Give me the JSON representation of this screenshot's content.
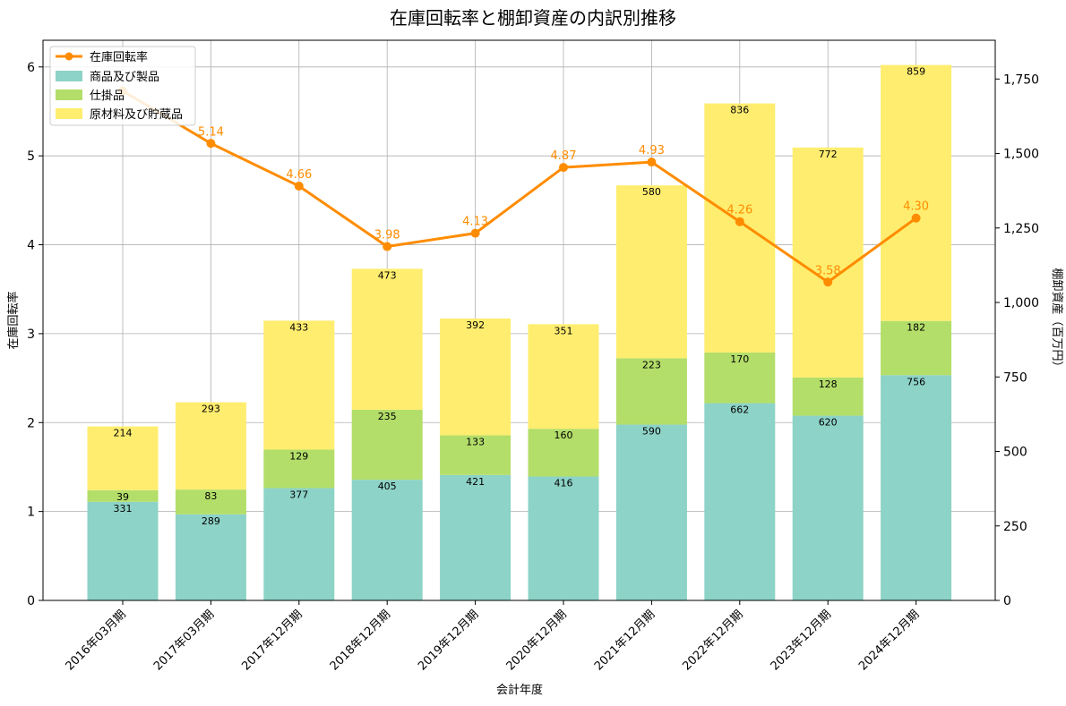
{
  "chart_data": {
    "type": "bar",
    "title": "在庫回転率と棚卸資産の内訳別推移",
    "xlabel": "会計年度",
    "ylabel_left": "在庫回転率",
    "ylabel_right": "棚卸資産（百万円）",
    "categories": [
      "2016年03月期",
      "2017年03月期",
      "2017年12月期",
      "2018年12月期",
      "2019年12月期",
      "2020年12月期",
      "2021年12月期",
      "2022年12月期",
      "2023年12月期",
      "2024年12月期"
    ],
    "ylim_left": [
      0,
      6.3
    ],
    "ylim_right": [
      0,
      1880
    ],
    "yticks_left": [
      0,
      1,
      2,
      3,
      4,
      5,
      6
    ],
    "yticks_right": [
      0,
      250,
      500,
      750,
      1000,
      1250,
      1500,
      1750
    ],
    "yticks_right_labels": [
      "0",
      "250",
      "500",
      "750",
      "1,000",
      "1,250",
      "1,500",
      "1,750"
    ],
    "stack_series": [
      {
        "name": "商品及び製品",
        "color": "#8dd3c7",
        "values": [
          331,
          289,
          377,
          405,
          421,
          416,
          590,
          662,
          620,
          756
        ]
      },
      {
        "name": "仕掛品",
        "color": "#b3de69",
        "values": [
          39,
          83,
          129,
          235,
          133,
          160,
          223,
          170,
          128,
          182
        ]
      },
      {
        "name": "原材料及び貯蔵品",
        "color": "#ffed6f",
        "values": [
          214,
          293,
          433,
          473,
          392,
          351,
          580,
          836,
          772,
          859
        ]
      }
    ],
    "line_series": {
      "name": "在庫回転率",
      "color": "#ff8c00",
      "values": [
        5.73,
        5.14,
        4.66,
        3.98,
        4.13,
        4.87,
        4.93,
        4.26,
        3.58,
        4.3
      ],
      "labels": [
        "",
        "5.14",
        "4.66",
        "3.98",
        "4.13",
        "4.87",
        "4.93",
        "4.26",
        "3.58",
        "4.30"
      ]
    },
    "grid": true,
    "legend_position": "top-left"
  }
}
